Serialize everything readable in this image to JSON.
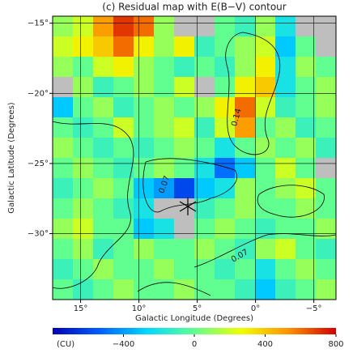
{
  "chart_data": {
    "type": "heatmap",
    "title": "(c) Residual map with E(B−V) contour",
    "x_label": "Galactic Longitude (Degrees)",
    "y_label": "Galactic Latitude (Degrees)",
    "colorbar_label": "(CU)",
    "xlim": [
      17.4,
      -6.9
    ],
    "ylim": [
      -34.7,
      -14.5
    ],
    "xticks": [
      {
        "value": 15,
        "label": "15°"
      },
      {
        "value": 10,
        "label": "10°"
      },
      {
        "value": 5,
        "label": "5°"
      },
      {
        "value": 0,
        "label": "0°"
      },
      {
        "value": -5,
        "label": "−5°"
      }
    ],
    "yticks": [
      {
        "value": -15,
        "label": "−15°"
      },
      {
        "value": -20,
        "label": "−20°"
      },
      {
        "value": -25,
        "label": "−25°"
      },
      {
        "value": -30,
        "label": "−30°"
      }
    ],
    "zlim": [
      -800,
      800
    ],
    "zticks": [
      {
        "value": -400,
        "label": "−400"
      },
      0,
      400,
      800
    ],
    "colors": [
      "#0000b4",
      "#0060ff",
      "#00d8ff",
      "#60ff90",
      "#f0ff00",
      "#ff9000",
      "#d00000"
    ],
    "null_color": "#bebebe",
    "annotations": [
      "0.14",
      "0.07",
      "0.07"
    ],
    "values": [
      [
        100,
        200,
        500,
        700,
        600,
        100,
        null,
        null,
        0,
        -100,
        100,
        -200,
        null,
        null
      ],
      [
        200,
        300,
        400,
        600,
        300,
        100,
        300,
        -100,
        0,
        100,
        200,
        -300,
        0,
        null
      ],
      [
        100,
        0,
        200,
        300,
        100,
        0,
        -100,
        0,
        -100,
        100,
        300,
        -200,
        100,
        0
      ],
      [
        null,
        100,
        -100,
        0,
        100,
        0,
        200,
        null,
        0,
        300,
        400,
        -200,
        0,
        100
      ],
      [
        -300,
        0,
        100,
        -100,
        0,
        100,
        0,
        100,
        300,
        600,
        200,
        -100,
        0,
        100
      ],
      [
        0,
        -100,
        0,
        200,
        0,
        100,
        200,
        -100,
        200,
        500,
        0,
        100,
        -100,
        0
      ],
      [
        100,
        0,
        -100,
        0,
        -100,
        0,
        100,
        0,
        -200,
        0,
        100,
        0,
        100,
        -100
      ],
      [
        0,
        100,
        0,
        -100,
        0,
        100,
        0,
        -200,
        -500,
        -300,
        0,
        200,
        0,
        null
      ],
      [
        -100,
        0,
        100,
        0,
        -300,
        -400,
        -600,
        -300,
        -200,
        100,
        0,
        100,
        200,
        0
      ],
      [
        0,
        100,
        0,
        -100,
        -200,
        null,
        null,
        -100,
        0,
        100,
        0,
        0,
        100,
        0
      ],
      [
        100,
        200,
        0,
        0,
        -300,
        -200,
        null,
        0,
        100,
        0,
        -100,
        0,
        0,
        100
      ],
      [
        0,
        100,
        -100,
        0,
        100,
        0,
        0,
        100,
        0,
        -100,
        100,
        200,
        0,
        -100
      ],
      [
        -100,
        0,
        100,
        0,
        0,
        100,
        0,
        0,
        -100,
        0,
        -200,
        0,
        100,
        0
      ],
      [
        0,
        -100,
        0,
        100,
        0,
        0,
        100,
        0,
        0,
        -100,
        -300,
        -100,
        0,
        100
      ]
    ]
  }
}
